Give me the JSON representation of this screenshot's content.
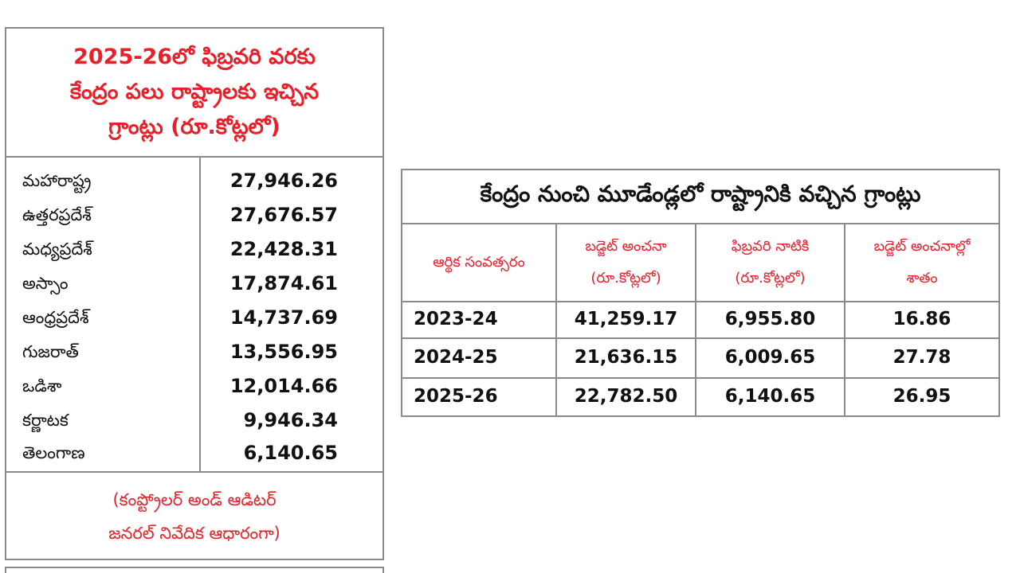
{
  "left_table": {
    "title_lines": [
      "2025-26లో ఫిబ్రవరి వరకు",
      "కేంద్రం పలు రాష్ట్రాలకు ఇచ్చిన",
      "గ్రాంట్లు (రూ.కోట్లలో)"
    ],
    "rows": [
      {
        "state": "మహారాష్ట్ర",
        "value": "27,946.26"
      },
      {
        "state": "ఉత్తరప్రదేశ్",
        "value": "27,676.57"
      },
      {
        "state": "మధ్యప్రదేశ్",
        "value": "22,428.31"
      },
      {
        "state": "అస్సాం",
        "value": "17,874.61"
      },
      {
        "state": "ఆంధ్రప్రదేశ్",
        "value": "14,737.69"
      },
      {
        "state": "గుజరాత్",
        "value": "13,556.95"
      },
      {
        "state": "ఒడిశా",
        "value": "12,014.66"
      },
      {
        "state": "కర్ణాటక",
        "value": "9,946.34"
      },
      {
        "state": "తెలంగాణ",
        "value": "6,140.65"
      }
    ],
    "footer_lines": [
      "(కంప్ట్రోలర్ అండ్ ఆడిటర్",
      "జనరల్ నివేదిక ఆధారంగా)"
    ]
  },
  "right_table": {
    "title": "కేంద్రం నుంచి మూడేండ్లలో రాష్ట్రానికి వచ్చిన గ్రాంట్లు",
    "headers": [
      {
        "line1": "ఆర్థిక సంవత్సరం",
        "line2": ""
      },
      {
        "line1": "బడ్జెట్ అంచనా",
        "line2": "(రూ.కోట్లలో)"
      },
      {
        "line1": "ఫిబ్రవరి నాటికి",
        "line2": "(రూ.కోట్లలో)"
      },
      {
        "line1": "బడ్జెట్ అంచనాల్లో",
        "line2": "శాతం"
      }
    ],
    "rows": [
      {
        "year": "2023-24",
        "budget": "41,259.17",
        "feb": "6,955.80",
        "percent": "16.86"
      },
      {
        "year": "2024-25",
        "budget": "21,636.15",
        "feb": "6,009.65",
        "percent": "27.78"
      },
      {
        "year": "2025-26",
        "budget": "22,782.50",
        "feb": "6,140.65",
        "percent": "26.95"
      }
    ]
  },
  "colors": {
    "accent_red": "#e8202a",
    "border_gray": "#8a8a8a",
    "text": "#111111"
  }
}
